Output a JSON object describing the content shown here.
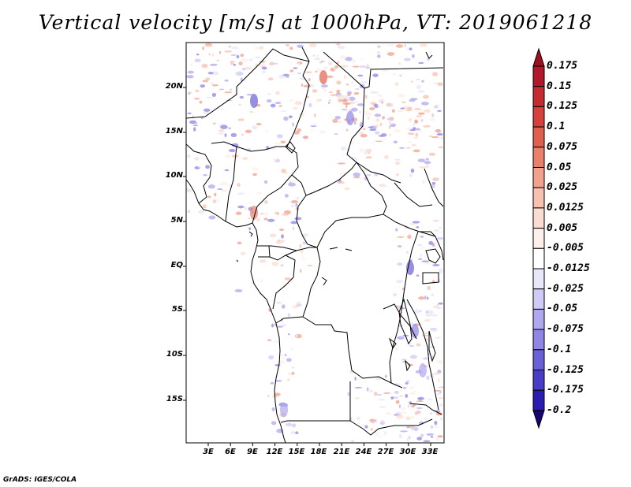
{
  "title": "Vertical velocity [m/s] at 1000hPa, VT: 2019061218",
  "credit": "GrADS: IGES/COLA",
  "lat_labels": [
    "20N",
    "15N",
    "10N",
    "5N",
    "EQ",
    "5S",
    "10S",
    "15S"
  ],
  "lon_labels": [
    "3E",
    "6E",
    "9E",
    "12E",
    "15E",
    "18E",
    "21E",
    "24E",
    "27E",
    "30E",
    "33E"
  ],
  "colorbar": {
    "labels": [
      "0.175",
      "0.15",
      "0.125",
      "0.1",
      "0.075",
      "0.05",
      "0.025",
      "0.0125",
      "0.005",
      "-0.005",
      "-0.0125",
      "-0.025",
      "-0.05",
      "-0.075",
      "-0.1",
      "-0.125",
      "-0.175",
      "-0.2"
    ],
    "colors": [
      "#b2182b",
      "#c52b31",
      "#d6413d",
      "#e0604f",
      "#e9806a",
      "#f2a18e",
      "#f7c0b0",
      "#fbdcd2",
      "#fdefea",
      "#ffffff",
      "#e8e6fb",
      "#cfcaf6",
      "#b0a8ef",
      "#8f85e5",
      "#6b60d8",
      "#4a3cc6",
      "#2c1db0",
      "#1a0a8f"
    ],
    "top_arrow_color": "#9c1020",
    "bottom_arrow_color": "#150575"
  }
}
